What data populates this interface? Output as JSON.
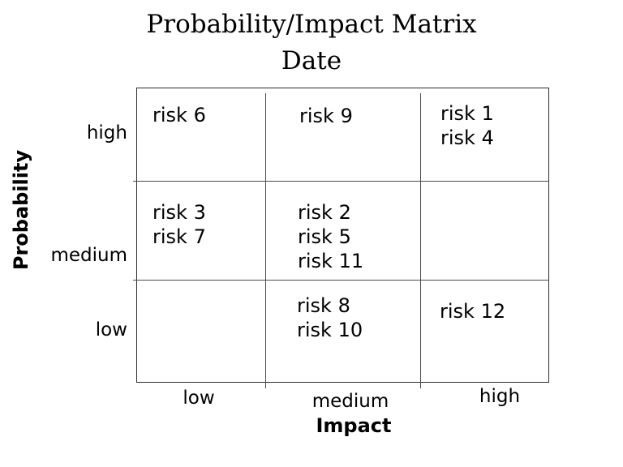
{
  "header": {
    "title": "Probability/Impact Matrix",
    "subtitle": "Date"
  },
  "axes": {
    "x_label": "Impact",
    "y_label": "Probability",
    "x_ticks": [
      "low",
      "medium",
      "high"
    ],
    "y_ticks": [
      "high",
      "medium",
      "low"
    ]
  },
  "chart_data": {
    "type": "table",
    "title": "Probability/Impact Matrix",
    "subtitle": "Date",
    "xlabel": "Impact",
    "ylabel": "Probability",
    "x_categories": [
      "low",
      "medium",
      "high"
    ],
    "y_categories": [
      "high",
      "medium",
      "low"
    ],
    "grid": "3x3 probability/impact matrix, rows top-to-bottom = probability high/medium/low, columns left-to-right = impact low/medium/high",
    "cells": [
      [
        [
          "risk 6"
        ],
        [
          "risk 9"
        ],
        [
          "risk 1",
          "risk 4"
        ]
      ],
      [
        [
          "risk 3",
          "risk 7"
        ],
        [
          "risk 2",
          "risk 5",
          "risk 11"
        ],
        []
      ],
      [
        [],
        [
          "risk 8",
          "risk 10"
        ],
        [
          "risk 12"
        ]
      ]
    ]
  },
  "colors": {
    "background": "#ffffff",
    "text": "#000000",
    "outer_border": "#2b2b2b",
    "grid_line": "#4a4a4a"
  }
}
